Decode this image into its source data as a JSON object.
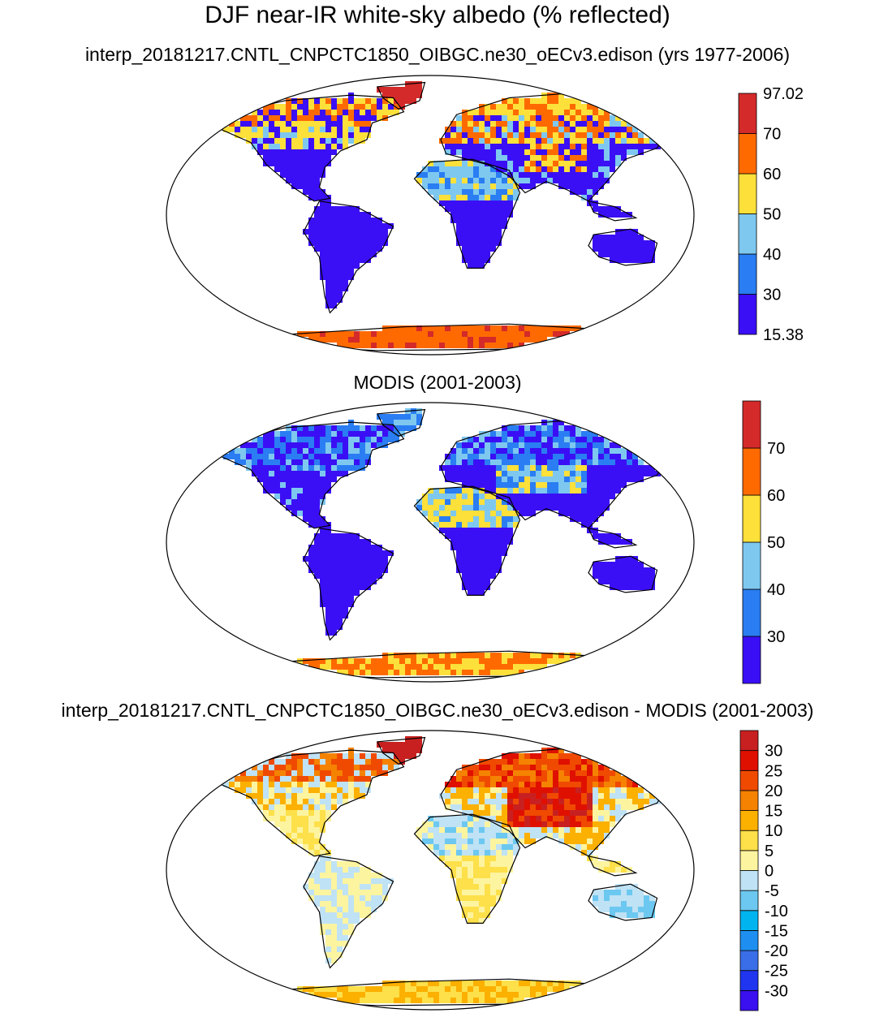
{
  "title": "DJF near-IR white-sky albedo (% reflected)",
  "panels": [
    {
      "id": "model",
      "subtitle": "interp_20181217.CNTL_CNPCTC1850_OIBGC.ne30_oECv3.edison (yrs 1977-2006)",
      "colorbar": {
        "colors": [
          "#3b0ff5",
          "#2a7df2",
          "#7ec8f0",
          "#fde03a",
          "#ff6a00",
          "#d42a2a"
        ],
        "labels": [
          "15.38",
          "30",
          "40",
          "50",
          "60",
          "70",
          "97.02"
        ],
        "label_mode": "edges"
      },
      "scheme": "model"
    },
    {
      "id": "obs",
      "subtitle": "MODIS (2001-2003)",
      "colorbar": {
        "colors": [
          "#3b0ff5",
          "#2a7df2",
          "#7ec8f0",
          "#fde03a",
          "#ff6a00",
          "#d42a2a"
        ],
        "labels": [
          "30",
          "40",
          "50",
          "60",
          "70"
        ],
        "label_mode": "interior"
      },
      "scheme": "obs"
    },
    {
      "id": "diff",
      "subtitle": "interp_20181217.CNTL_CNPCTC1850_OIBGC.ne30_oECv3.edison - MODIS (2001-2003)",
      "colorbar": {
        "colors": [
          "#3a0ff0",
          "#2035f0",
          "#3a6ee8",
          "#1e8ff0",
          "#00b4f0",
          "#6cc8f0",
          "#bfe2f5",
          "#fdf4a0",
          "#fde04a",
          "#fcb000",
          "#f58200",
          "#f04a00",
          "#e01000",
          "#c82020"
        ],
        "labels": [
          "-30",
          "-25",
          "-20",
          "-15",
          "-10",
          "-5",
          "0",
          "5",
          "10",
          "15",
          "20",
          "25",
          "30"
        ],
        "label_mode": "interior"
      },
      "scheme": "diff"
    }
  ]
}
